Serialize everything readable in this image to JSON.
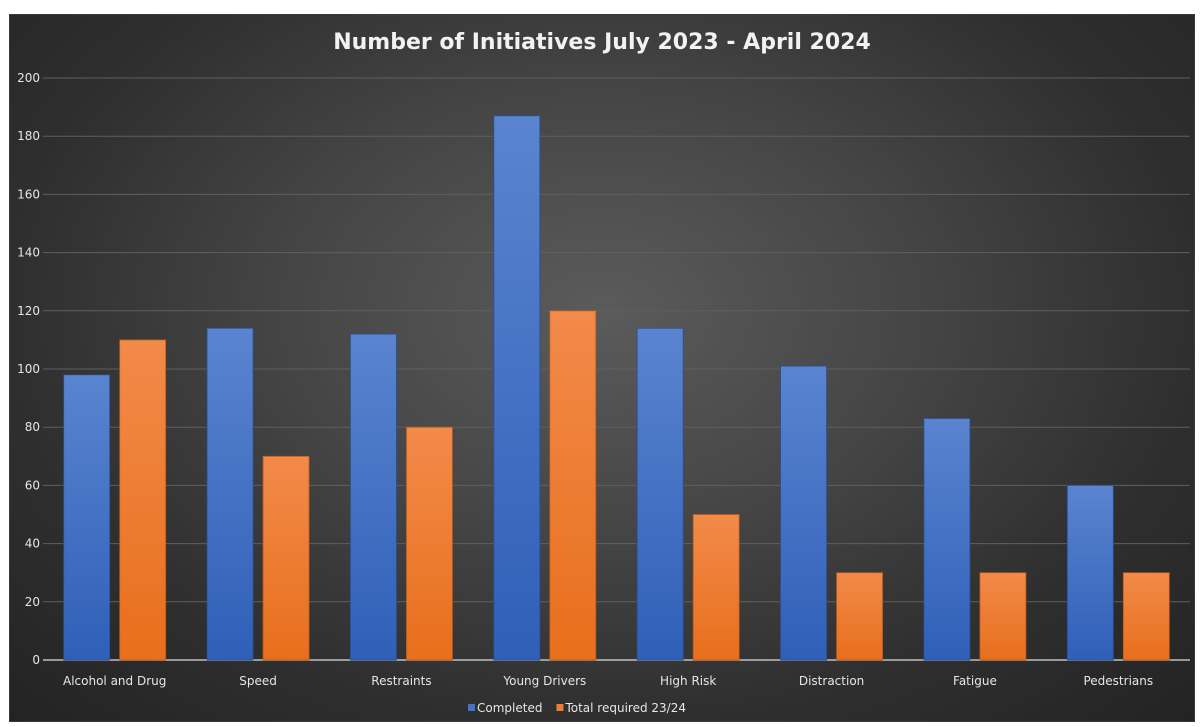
{
  "chart_data": {
    "type": "bar",
    "title": "Number of Initiatives July 2023 - April 2024",
    "categories": [
      "Alcohol and Drug",
      "Speed",
      "Restraints",
      "Young Drivers",
      "High Risk",
      "Distraction",
      "Fatigue",
      "Pedestrians"
    ],
    "series": [
      {
        "name": "Completed",
        "values": [
          98,
          114,
          112,
          187,
          114,
          101,
          83,
          60
        ],
        "color": "#4472c4"
      },
      {
        "name": "Total required 23/24",
        "values": [
          110,
          70,
          80,
          120,
          50,
          30,
          30,
          30
        ],
        "color": "#ed7d31"
      }
    ],
    "ylim": [
      0,
      200
    ],
    "yticks": [
      0,
      20,
      40,
      60,
      80,
      100,
      120,
      140,
      160,
      180,
      200
    ],
    "grid": true,
    "legend_position": "bottom"
  }
}
